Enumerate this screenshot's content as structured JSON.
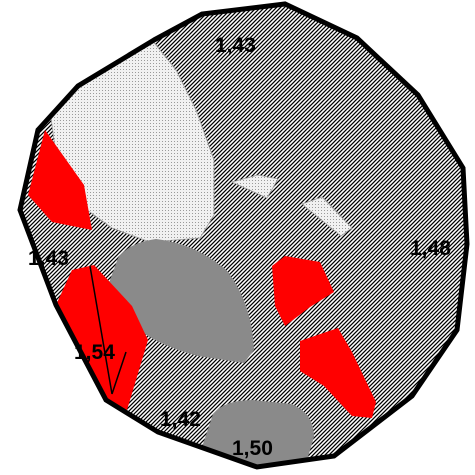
{
  "labels": {
    "top": "1,43",
    "left": "1,43",
    "right": "1,48",
    "lower_left_red": "1,54",
    "bottom_left": "1,42",
    "bottom_gray": "1,50"
  },
  "colors": {
    "red": "#ff0000",
    "gray": "#8a8a8a",
    "light_region": "#e6e6e6",
    "hatch_ink": "#000000",
    "outline": "#000000"
  }
}
